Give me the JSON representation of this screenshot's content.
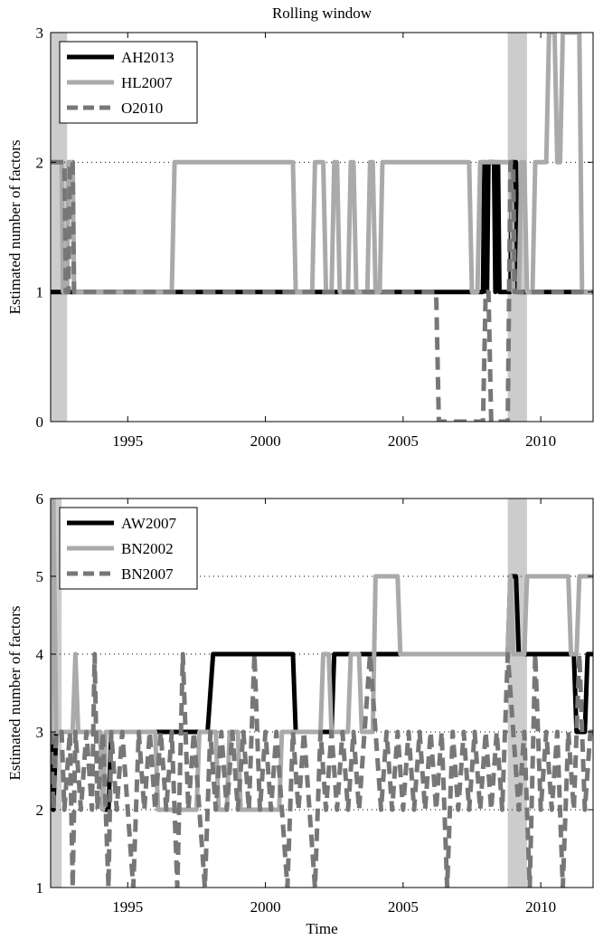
{
  "figure": {
    "title": "Rolling window",
    "xlabel": "Time"
  },
  "chart_data": [
    {
      "type": "line",
      "title": "Rolling window",
      "xlabel": "",
      "ylabel": "Estimated number of factors",
      "xlim": [
        1992.2,
        2011.9
      ],
      "ylim": [
        0,
        3
      ],
      "xticks": [
        1995,
        2000,
        2005,
        2010
      ],
      "yticks": [
        0,
        1,
        2,
        3
      ],
      "grid": "dotted horizontal",
      "legend": "top-left",
      "shaded_periods": [
        [
          1992.2,
          1992.8
        ],
        [
          2008.8,
          2009.5
        ]
      ],
      "series": [
        {
          "name": "AH2013",
          "color": "#000000",
          "style": "solid",
          "points": [
            [
              1992.2,
              1
            ],
            [
              2007.9,
              1
            ],
            [
              2007.95,
              2
            ],
            [
              2008.05,
              1
            ],
            [
              2008.1,
              2
            ],
            [
              2008.3,
              2
            ],
            [
              2008.35,
              1
            ],
            [
              2008.45,
              2
            ],
            [
              2008.5,
              1
            ],
            [
              2008.9,
              1
            ],
            [
              2008.95,
              2
            ],
            [
              2009.1,
              2
            ],
            [
              2009.15,
              1
            ],
            [
              2011.9,
              1
            ]
          ]
        },
        {
          "name": "HL2007",
          "color": "#aaaaaa",
          "style": "solid",
          "points": [
            [
              1992.2,
              2
            ],
            [
              1992.6,
              2
            ],
            [
              1992.65,
              1
            ],
            [
              1992.8,
              1
            ],
            [
              1992.85,
              2
            ],
            [
              1993.0,
              2
            ],
            [
              1993.05,
              1
            ],
            [
              1996.6,
              1
            ],
            [
              1996.7,
              2
            ],
            [
              2001.0,
              2
            ],
            [
              2001.1,
              1
            ],
            [
              2001.7,
              1
            ],
            [
              2001.8,
              2
            ],
            [
              2002.1,
              2
            ],
            [
              2002.2,
              1
            ],
            [
              2002.4,
              1
            ],
            [
              2002.5,
              2
            ],
            [
              2002.6,
              2
            ],
            [
              2002.7,
              1
            ],
            [
              2003.0,
              1
            ],
            [
              2003.1,
              2
            ],
            [
              2003.2,
              2
            ],
            [
              2003.3,
              1
            ],
            [
              2003.7,
              1
            ],
            [
              2003.8,
              2
            ],
            [
              2003.9,
              2
            ],
            [
              2004.0,
              1
            ],
            [
              2004.15,
              1
            ],
            [
              2004.25,
              2
            ],
            [
              2007.4,
              2
            ],
            [
              2007.5,
              1
            ],
            [
              2007.7,
              1
            ],
            [
              2007.8,
              2
            ],
            [
              2008.9,
              2
            ],
            [
              2009.0,
              1
            ],
            [
              2009.2,
              1
            ],
            [
              2009.3,
              2
            ],
            [
              2009.4,
              2
            ],
            [
              2009.5,
              1
            ],
            [
              2009.7,
              1
            ],
            [
              2009.8,
              2
            ],
            [
              2010.2,
              2
            ],
            [
              2010.3,
              3
            ],
            [
              2010.5,
              3
            ],
            [
              2010.6,
              2
            ],
            [
              2010.7,
              2
            ],
            [
              2010.8,
              3
            ],
            [
              2011.4,
              3
            ],
            [
              2011.5,
              1
            ],
            [
              2011.9,
              1
            ]
          ]
        },
        {
          "name": "O2010",
          "color": "#777777",
          "style": "dashed",
          "points": [
            [
              1992.2,
              2
            ],
            [
              1992.7,
              2
            ],
            [
              1992.75,
              1
            ],
            [
              1992.85,
              1
            ],
            [
              1992.9,
              2
            ],
            [
              1993.0,
              2
            ],
            [
              1993.05,
              1
            ],
            [
              2006.2,
              1
            ],
            [
              2006.3,
              0
            ],
            [
              2007.9,
              0
            ],
            [
              2008.0,
              1
            ],
            [
              2008.1,
              1
            ],
            [
              2008.2,
              0
            ],
            [
              2008.8,
              0
            ],
            [
              2008.9,
              2
            ],
            [
              2009.0,
              2
            ],
            [
              2009.05,
              1
            ],
            [
              2011.9,
              1
            ]
          ]
        }
      ]
    },
    {
      "type": "line",
      "title": "",
      "xlabel": "Time",
      "ylabel": "Estimated number of factors",
      "xlim": [
        1992.2,
        2011.9
      ],
      "ylim": [
        1,
        6
      ],
      "xticks": [
        1995,
        2000,
        2005,
        2010
      ],
      "yticks": [
        1,
        2,
        3,
        4,
        5,
        6
      ],
      "grid": "dotted horizontal",
      "legend": "top-left",
      "shaded_periods": [
        [
          1992.2,
          1992.6
        ],
        [
          2008.8,
          2009.5
        ]
      ],
      "series": [
        {
          "name": "AW2007",
          "color": "#000000",
          "style": "solid",
          "points": [
            [
              1992.2,
              3
            ],
            [
              1992.3,
              2
            ],
            [
              1992.4,
              3
            ],
            [
              1994.0,
              3
            ],
            [
              1994.1,
              2
            ],
            [
              1994.3,
              2
            ],
            [
              1994.4,
              3
            ],
            [
              1997.9,
              3
            ],
            [
              1998.1,
              4
            ],
            [
              2001.0,
              4
            ],
            [
              2001.1,
              3
            ],
            [
              2002.4,
              3
            ],
            [
              2002.5,
              4
            ],
            [
              2008.8,
              4
            ],
            [
              2008.9,
              5
            ],
            [
              2009.1,
              5
            ],
            [
              2009.2,
              4
            ],
            [
              2011.2,
              4
            ],
            [
              2011.3,
              3
            ],
            [
              2011.6,
              3
            ],
            [
              2011.7,
              4
            ],
            [
              2011.9,
              4
            ]
          ]
        },
        {
          "name": "BN2002",
          "color": "#aaaaaa",
          "style": "solid",
          "points": [
            [
              1992.2,
              3
            ],
            [
              1992.3,
              6
            ],
            [
              1992.4,
              3
            ],
            [
              1993.0,
              3
            ],
            [
              1993.1,
              4
            ],
            [
              1993.2,
              3
            ],
            [
              1994.0,
              3
            ],
            [
              1994.1,
              2
            ],
            [
              1994.2,
              3
            ],
            [
              1996.0,
              3
            ],
            [
              1996.1,
              2
            ],
            [
              1997.5,
              2
            ],
            [
              1997.6,
              3
            ],
            [
              1998.2,
              3
            ],
            [
              1998.3,
              2
            ],
            [
              1998.6,
              2
            ],
            [
              1998.7,
              3
            ],
            [
              1999.0,
              3
            ],
            [
              1999.1,
              2
            ],
            [
              2000.5,
              2
            ],
            [
              2000.6,
              3
            ],
            [
              2002.0,
              3
            ],
            [
              2002.1,
              4
            ],
            [
              2002.3,
              4
            ],
            [
              2002.4,
              3
            ],
            [
              2003.0,
              3
            ],
            [
              2003.1,
              4
            ],
            [
              2003.4,
              4
            ],
            [
              2003.5,
              3
            ],
            [
              2003.9,
              3
            ],
            [
              2004.0,
              5
            ],
            [
              2004.8,
              5
            ],
            [
              2004.9,
              4
            ],
            [
              2008.8,
              4
            ],
            [
              2008.9,
              5
            ],
            [
              2009.0,
              4
            ],
            [
              2009.4,
              4
            ],
            [
              2009.5,
              5
            ],
            [
              2011.0,
              5
            ],
            [
              2011.1,
              4
            ],
            [
              2011.3,
              4
            ],
            [
              2011.4,
              5
            ],
            [
              2011.9,
              5
            ]
          ]
        },
        {
          "name": "BN2007",
          "color": "#777777",
          "style": "dashed",
          "points": [
            [
              1992.2,
              3
            ],
            [
              1992.3,
              2
            ],
            [
              1992.4,
              3
            ],
            [
              1992.6,
              3
            ],
            [
              1992.7,
              2
            ],
            [
              1992.9,
              3
            ],
            [
              1993.0,
              1
            ],
            [
              1993.1,
              3
            ],
            [
              1993.3,
              2
            ],
            [
              1993.5,
              3
            ],
            [
              1993.7,
              2
            ],
            [
              1993.8,
              4
            ],
            [
              1993.9,
              2
            ],
            [
              1994.1,
              3
            ],
            [
              1994.3,
              1
            ],
            [
              1994.4,
              3
            ],
            [
              1994.6,
              2
            ],
            [
              1994.8,
              3
            ],
            [
              1995.0,
              2
            ],
            [
              1995.2,
              1
            ],
            [
              1995.4,
              3
            ],
            [
              1995.6,
              2
            ],
            [
              1995.8,
              3
            ],
            [
              1996.0,
              2
            ],
            [
              1996.2,
              3
            ],
            [
              1996.4,
              2
            ],
            [
              1996.6,
              3
            ],
            [
              1996.8,
              1
            ],
            [
              1997.0,
              4
            ],
            [
              1997.2,
              2
            ],
            [
              1997.4,
              3
            ],
            [
              1997.6,
              2
            ],
            [
              1997.8,
              1
            ],
            [
              1998.0,
              3
            ],
            [
              1998.2,
              2
            ],
            [
              1998.4,
              3
            ],
            [
              1998.6,
              2
            ],
            [
              1998.8,
              3
            ],
            [
              1999.0,
              2
            ],
            [
              1999.2,
              3
            ],
            [
              1999.4,
              2
            ],
            [
              1999.6,
              4
            ],
            [
              1999.8,
              2
            ],
            [
              2000.0,
              3
            ],
            [
              2000.2,
              2
            ],
            [
              2000.4,
              3
            ],
            [
              2000.6,
              2
            ],
            [
              2000.8,
              1
            ],
            [
              2001.0,
              3
            ],
            [
              2001.2,
              2
            ],
            [
              2001.4,
              3
            ],
            [
              2001.6,
              2
            ],
            [
              2001.8,
              1
            ],
            [
              2002.0,
              3
            ],
            [
              2002.2,
              2
            ],
            [
              2002.4,
              3
            ],
            [
              2002.6,
              2
            ],
            [
              2002.8,
              3
            ],
            [
              2003.0,
              2
            ],
            [
              2003.2,
              3
            ],
            [
              2003.4,
              2
            ],
            [
              2003.6,
              3
            ],
            [
              2003.8,
              4
            ],
            [
              2004.0,
              3
            ],
            [
              2004.2,
              2
            ],
            [
              2004.4,
              3
            ],
            [
              2004.6,
              2
            ],
            [
              2004.8,
              3
            ],
            [
              2005.0,
              2
            ],
            [
              2005.2,
              3
            ],
            [
              2005.4,
              2
            ],
            [
              2005.6,
              3
            ],
            [
              2005.8,
              2
            ],
            [
              2006.0,
              3
            ],
            [
              2006.2,
              2
            ],
            [
              2006.4,
              3
            ],
            [
              2006.6,
              1
            ],
            [
              2006.8,
              3
            ],
            [
              2007.0,
              2
            ],
            [
              2007.2,
              3
            ],
            [
              2007.4,
              2
            ],
            [
              2007.6,
              3
            ],
            [
              2007.8,
              2
            ],
            [
              2008.0,
              3
            ],
            [
              2008.2,
              2
            ],
            [
              2008.4,
              3
            ],
            [
              2008.6,
              2
            ],
            [
              2008.8,
              4
            ],
            [
              2009.0,
              3
            ],
            [
              2009.2,
              2
            ],
            [
              2009.4,
              3
            ],
            [
              2009.6,
              1
            ],
            [
              2009.8,
              4
            ],
            [
              2010.0,
              2
            ],
            [
              2010.2,
              3
            ],
            [
              2010.4,
              2
            ],
            [
              2010.6,
              3
            ],
            [
              2010.8,
              1
            ],
            [
              2011.0,
              3
            ],
            [
              2011.2,
              2
            ],
            [
              2011.4,
              4
            ],
            [
              2011.6,
              2
            ],
            [
              2011.8,
              3
            ],
            [
              2011.9,
              3
            ]
          ]
        }
      ]
    }
  ]
}
